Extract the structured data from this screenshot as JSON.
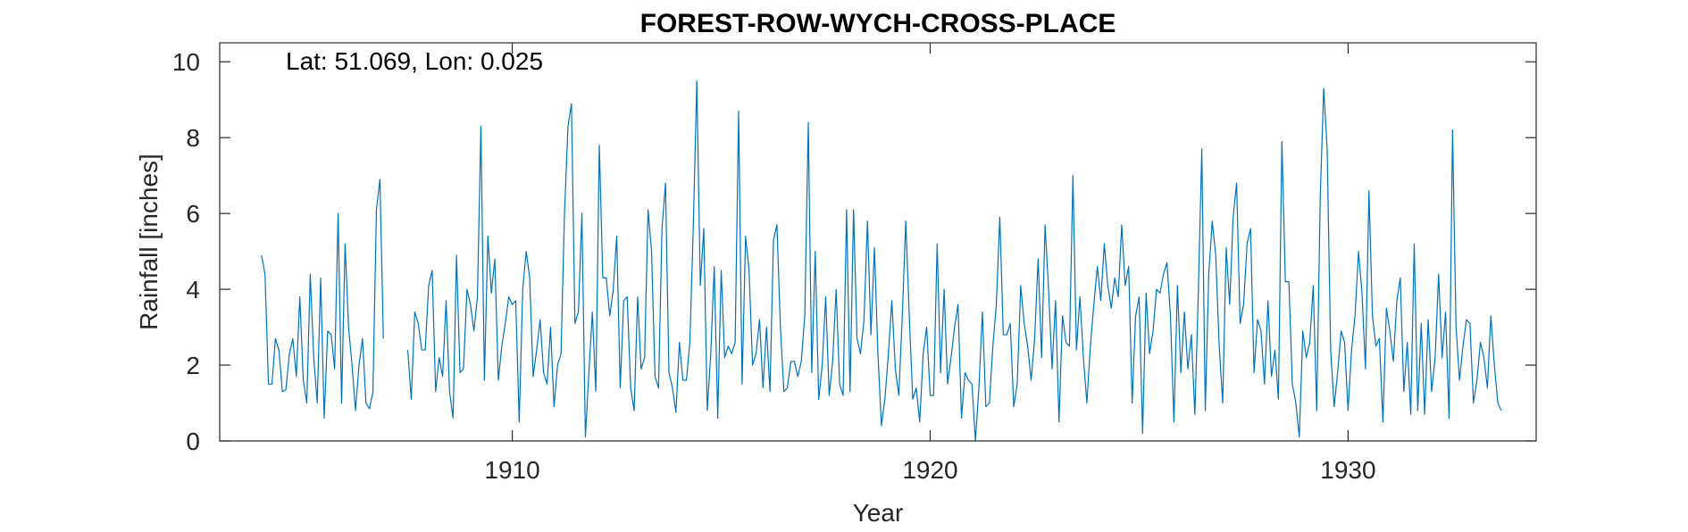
{
  "chart_data": {
    "type": "line",
    "title": "FOREST-ROW-WYCH-CROSS-PLACE",
    "annotation": "Lat: 51.069, Lon: 0.025",
    "xlabel": "Year",
    "ylabel": "Rainfall [inches]",
    "xlim": [
      1903.0,
      1934.5
    ],
    "ylim": [
      0,
      10.5
    ],
    "xticks": [
      1910,
      1920,
      1930
    ],
    "yticks": [
      0,
      2,
      4,
      6,
      8,
      10
    ],
    "grid": false,
    "legend": "none",
    "line_color": "#0072BD",
    "series": [
      {
        "x_start": 1904.0,
        "x_step": 0.08333,
        "values": [
          4.9,
          4.4,
          1.5,
          1.5,
          2.7,
          2.4,
          1.3,
          1.35,
          2.3,
          2.7,
          1.7,
          3.8,
          1.6,
          1.0,
          4.4,
          2.2,
          1.0,
          4.3,
          0.6,
          2.9,
          2.8,
          1.9,
          6.0,
          1.0,
          5.2,
          3.0,
          2.0,
          0.8,
          2.0,
          2.7,
          1.0,
          0.85,
          1.3,
          6.1,
          6.9,
          2.7
        ]
      },
      {
        "x_start": 1907.5,
        "x_step": 0.08333,
        "values": [
          2.4,
          1.1,
          3.4,
          3.1,
          2.4,
          2.4,
          4.1,
          4.5,
          1.3,
          2.2,
          1.7,
          3.7,
          1.3,
          0.6,
          4.9,
          1.8,
          1.9,
          4.0,
          3.6,
          2.9,
          3.8,
          8.3,
          1.6,
          5.4,
          3.9,
          4.8,
          1.6,
          2.5,
          3.1,
          3.8,
          3.6,
          3.7,
          0.5,
          4.0,
          5.0,
          4.3,
          1.7,
          2.4,
          3.2,
          1.8,
          1.5,
          3.0,
          0.9,
          2.0,
          2.3,
          6.0,
          8.3,
          8.9,
          3.1,
          3.4,
          6.0,
          0.1,
          1.8,
          3.4,
          1.3,
          7.8,
          4.3,
          4.3,
          3.3,
          4.0,
          5.4,
          1.4,
          3.7,
          3.8,
          1.4,
          0.8,
          3.8,
          1.9,
          2.2,
          6.1,
          5.0,
          1.7,
          1.4,
          5.6,
          6.8,
          1.8,
          1.4,
          0.75,
          2.6,
          1.6,
          1.6,
          2.6,
          5.7,
          9.5,
          4.1,
          5.6,
          0.8,
          2.3,
          4.6,
          0.6,
          4.5,
          2.2,
          2.5,
          2.3,
          2.6,
          8.7,
          1.5,
          5.4,
          4.5,
          2.0,
          2.3,
          3.2,
          1.4,
          3.0,
          1.3,
          5.3,
          5.7,
          3.0,
          1.3,
          1.4,
          2.1,
          2.1,
          1.7,
          2.1,
          3.3,
          8.4,
          1.8,
          5.0,
          1.1,
          2.0,
          3.8,
          1.2,
          2.1,
          4.0,
          1.5,
          1.2,
          6.1,
          1.3,
          6.1,
          2.7,
          2.3,
          3.2,
          5.8,
          2.8,
          5.1,
          2.3,
          0.4,
          1.1,
          2.3,
          3.7,
          1.9,
          1.2,
          3.3,
          5.8,
          3.3,
          1.1,
          1.4,
          0.5,
          2.3,
          3.0,
          1.2,
          1.2,
          5.2,
          1.8,
          4.0,
          1.5,
          2.2,
          3.0,
          3.6,
          0.6,
          1.8,
          1.6,
          1.5,
          0.0,
          1.4,
          3.4,
          0.9,
          1.0,
          2.5,
          3.6,
          5.9,
          2.8,
          2.8,
          3.1,
          0.9,
          1.5,
          4.1,
          3.1,
          2.5,
          1.6,
          2.7,
          4.8,
          2.2,
          5.7,
          4.0,
          1.9,
          3.7,
          0.5,
          3.3,
          2.6,
          2.5,
          7.0,
          2.4,
          3.8,
          2.2,
          1.0,
          2.5,
          3.6,
          4.6,
          3.7,
          5.2,
          4.1,
          3.5,
          4.3,
          3.8,
          5.7,
          4.1,
          4.6,
          1.0,
          3.3,
          3.8,
          0.2,
          3.9,
          2.3,
          2.9,
          4.0,
          3.9,
          4.4,
          4.7,
          3.3,
          0.5,
          4.1,
          1.8,
          3.4,
          1.9,
          2.8,
          0.7,
          3.9,
          7.7,
          0.8,
          4.4,
          5.8,
          4.9,
          2.5,
          1.0,
          5.1,
          3.6,
          5.9,
          6.8,
          3.1,
          3.6,
          5.2,
          5.6,
          1.8,
          3.2,
          2.9,
          1.5,
          3.7,
          1.7,
          2.4,
          1.1,
          7.9,
          4.2,
          4.2,
          1.5,
          1.0,
          0.1,
          2.9,
          2.2,
          2.6,
          4.1,
          0.8,
          6.4,
          9.3,
          7.7,
          2.4,
          0.9,
          1.8,
          2.9,
          2.6,
          0.8,
          2.4,
          3.3,
          5.0,
          3.9,
          1.9,
          6.6,
          3.3,
          2.5,
          2.7,
          0.5,
          3.5,
          2.9,
          2.1,
          3.7,
          4.3,
          1.3,
          2.6,
          0.7,
          5.2,
          0.8,
          3.1,
          0.7,
          3.2,
          1.3,
          2.2,
          4.4,
          2.2,
          3.4,
          0.6,
          8.2,
          3.0,
          1.6,
          2.5,
          3.2,
          3.1,
          1.0,
          1.6,
          2.6,
          2.2,
          1.4,
          3.3,
          2.0,
          1.0,
          0.8
        ]
      }
    ]
  }
}
